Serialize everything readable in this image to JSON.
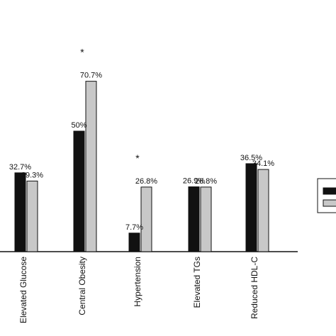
{
  "chart_data": {
    "type": "bar",
    "categories": [
      "Elevated Glucose",
      "Central Obesity",
      "Hypertension",
      "Elevated TGs",
      "Reduced HDL-C"
    ],
    "series": [
      {
        "values": [
          32.7,
          50,
          7.7,
          26.9,
          36.5
        ],
        "labels": [
          "32.7%",
          "50%",
          "7.7%",
          "26.9%",
          "36.5%"
        ],
        "color": "#111111"
      },
      {
        "values": [
          29.3,
          70.7,
          26.8,
          26.8,
          34.1
        ],
        "labels": [
          "29.3%",
          "70.7%",
          "26.8%",
          "26.8%",
          "34.1%"
        ],
        "color": "#c8c8c8"
      }
    ],
    "significance": [
      "",
      "*",
      "*",
      "",
      ""
    ],
    "ylim": [
      0,
      75
    ],
    "grid": false,
    "legend": "right"
  }
}
